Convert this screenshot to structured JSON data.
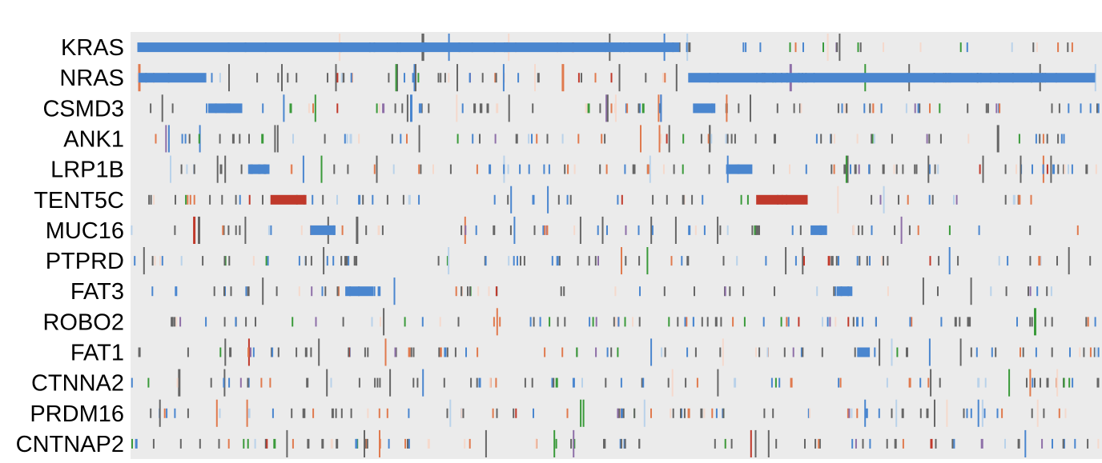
{
  "chart_data": {
    "type": "heatmap",
    "description_note": "",
    "genes": [
      "KRAS",
      "NRAS",
      "CSMD3",
      "ANK1",
      "LRP1B",
      "TENT5C",
      "MUC16",
      "PTPRD",
      "FAT3",
      "ROBO2",
      "FAT1",
      "CTNNA2",
      "PRDM16",
      "CNTNAP2"
    ],
    "background_color": "#ebebeb",
    "palette": {
      "missense": "#4a86cf",
      "other": "#666666",
      "truncating": "#e07a4e",
      "high": "#c0392b",
      "low": "#f5d9cc",
      "green": "#3a9a3a",
      "purple": "#8e6fa8",
      "light_blue": "#b9d2ea"
    },
    "bars": [
      {
        "gene": "KRAS",
        "x_start": 0.007,
        "x_end": 0.565,
        "color": "#4a86cf"
      },
      {
        "gene": "NRAS",
        "x_start": 0.008,
        "x_end": 0.078,
        "color": "#4a86cf"
      },
      {
        "gene": "NRAS",
        "x_start": 0.574,
        "x_end": 0.993,
        "color": "#4a86cf"
      },
      {
        "gene": "CSMD3",
        "x_start": 0.08,
        "x_end": 0.115,
        "color": "#4a86cf"
      },
      {
        "gene": "CSMD3",
        "x_start": 0.579,
        "x_end": 0.602,
        "color": "#4a86cf"
      },
      {
        "gene": "LRP1B",
        "x_start": 0.121,
        "x_end": 0.143,
        "color": "#4a86cf"
      },
      {
        "gene": "LRP1B",
        "x_start": 0.613,
        "x_end": 0.64,
        "color": "#4a86cf"
      },
      {
        "gene": "TENT5C",
        "x_start": 0.144,
        "x_end": 0.181,
        "color": "#c0392b"
      },
      {
        "gene": "TENT5C",
        "x_start": 0.644,
        "x_end": 0.697,
        "color": "#c0392b"
      },
      {
        "gene": "MUC16",
        "x_start": 0.185,
        "x_end": 0.211,
        "color": "#4a86cf"
      },
      {
        "gene": "MUC16",
        "x_start": 0.7,
        "x_end": 0.717,
        "color": "#4a86cf"
      },
      {
        "gene": "FAT3",
        "x_start": 0.221,
        "x_end": 0.25,
        "color": "#4a86cf"
      },
      {
        "gene": "FAT3",
        "x_start": 0.727,
        "x_end": 0.743,
        "color": "#4a86cf"
      },
      {
        "gene": "FAT1",
        "x_start": 0.748,
        "x_end": 0.761,
        "color": "#4a86cf"
      }
    ]
  }
}
